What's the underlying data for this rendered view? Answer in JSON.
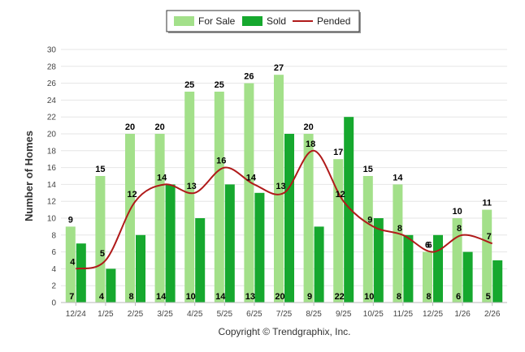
{
  "chart_data": {
    "type": "bar",
    "title": "",
    "xlabel": "",
    "ylabel": "Number of Homes",
    "ylim": [
      0,
      30
    ],
    "y_ticks": [
      0,
      2,
      4,
      6,
      8,
      10,
      12,
      14,
      16,
      18,
      20,
      22,
      24,
      26,
      28,
      30
    ],
    "grid": true,
    "legend_position": "top-center",
    "categories": [
      "12/24",
      "1/25",
      "2/25",
      "3/25",
      "4/25",
      "5/25",
      "6/25",
      "7/25",
      "8/25",
      "9/25",
      "10/25",
      "11/25",
      "12/25",
      "1/26",
      "2/26"
    ],
    "series": [
      {
        "name": "For Sale",
        "kind": "bar",
        "color": "#a3e08a",
        "values": [
          9,
          15,
          20,
          20,
          25,
          25,
          26,
          27,
          20,
          17,
          15,
          14,
          6,
          10,
          11
        ]
      },
      {
        "name": "Sold",
        "kind": "bar",
        "color": "#16a82e",
        "values": [
          7,
          4,
          8,
          14,
          10,
          14,
          13,
          20,
          9,
          22,
          10,
          8,
          8,
          6,
          5
        ]
      },
      {
        "name": "Pended",
        "kind": "line",
        "color": "#b01a1a",
        "values": [
          4,
          5,
          12,
          14,
          13,
          16,
          14,
          13,
          18,
          12,
          9,
          8,
          6,
          8,
          7
        ]
      }
    ]
  },
  "footer": {
    "copyright": "Copyright © Trendgraphix, Inc."
  }
}
